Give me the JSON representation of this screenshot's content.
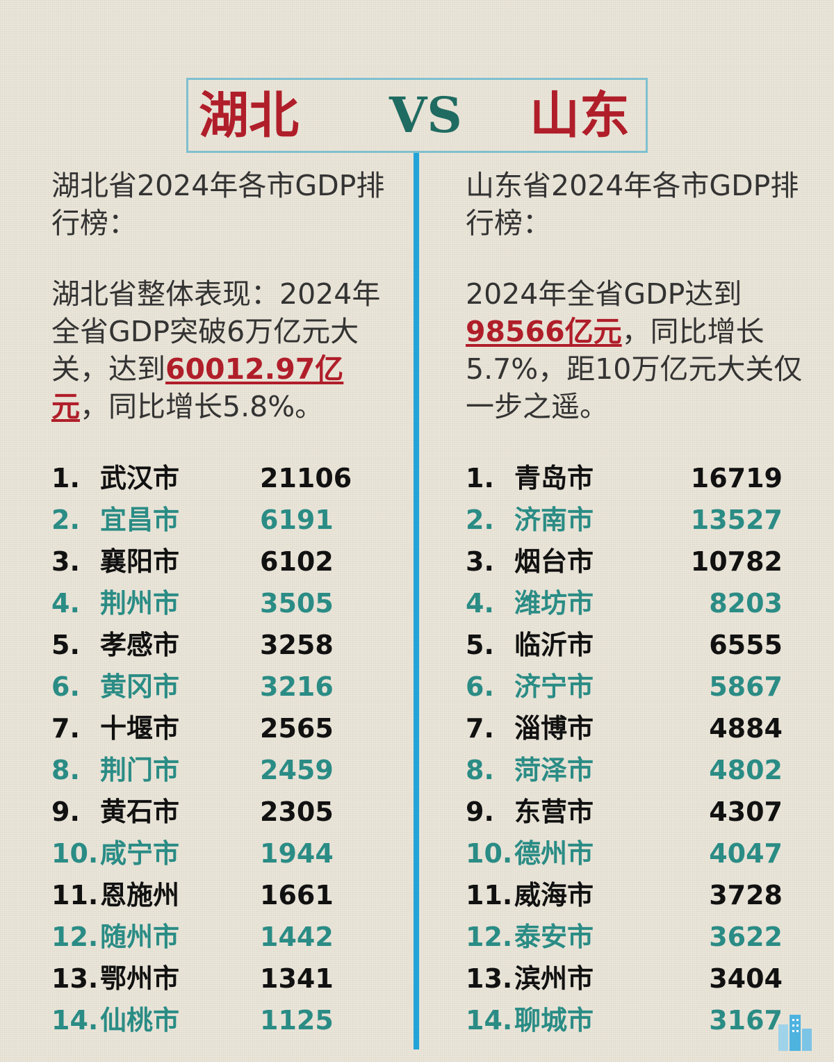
{
  "title": {
    "left": "湖北",
    "vs": "VS",
    "right": "山东"
  },
  "hubei": {
    "heading": "湖北省2024年各市GDP排行榜：",
    "summary_prefix": "湖北省整体表现：2024年全省GDP突破6万亿元大关，达到",
    "summary_highlight": "60012.97亿元",
    "summary_suffix": "，同比增长5.8%。",
    "ranking": [
      {
        "rank": "1.",
        "city": "武汉市",
        "gdp": "21106"
      },
      {
        "rank": "2.",
        "city": "宜昌市",
        "gdp": "6191"
      },
      {
        "rank": "3.",
        "city": "襄阳市",
        "gdp": "6102"
      },
      {
        "rank": "4.",
        "city": "荆州市",
        "gdp": "3505"
      },
      {
        "rank": "5.",
        "city": "孝感市",
        "gdp": "3258"
      },
      {
        "rank": "6.",
        "city": "黄冈市",
        "gdp": "3216"
      },
      {
        "rank": "7.",
        "city": "十堰市",
        "gdp": "2565"
      },
      {
        "rank": "8.",
        "city": "荆门市",
        "gdp": "2459"
      },
      {
        "rank": "9.",
        "city": "黄石市",
        "gdp": "2305"
      },
      {
        "rank": "10.",
        "city": "咸宁市",
        "gdp": "1944"
      },
      {
        "rank": "11.",
        "city": "恩施州",
        "gdp": "1661"
      },
      {
        "rank": "12.",
        "city": "随州市",
        "gdp": "1442"
      },
      {
        "rank": "13.",
        "city": "鄂州市",
        "gdp": "1341"
      },
      {
        "rank": "14.",
        "city": "仙桃市",
        "gdp": "1125"
      }
    ]
  },
  "shandong": {
    "heading": "山东省2024年各市GDP排行榜：",
    "summary_prefix": "2024年全省GDP达到",
    "summary_highlight": "98566亿元",
    "summary_suffix": "，同比增长5.7%，距10万亿元大关仅一步之遥。",
    "ranking": [
      {
        "rank": "1.",
        "city": "青岛市",
        "gdp": "16719"
      },
      {
        "rank": "2.",
        "city": "济南市",
        "gdp": "13527"
      },
      {
        "rank": "3.",
        "city": "烟台市",
        "gdp": "10782"
      },
      {
        "rank": "4.",
        "city": "潍坊市",
        "gdp": "8203"
      },
      {
        "rank": "5.",
        "city": "临沂市",
        "gdp": "6555"
      },
      {
        "rank": "6.",
        "city": "济宁市",
        "gdp": "5867"
      },
      {
        "rank": "7.",
        "city": "淄博市",
        "gdp": "4884"
      },
      {
        "rank": "8.",
        "city": "菏泽市",
        "gdp": "4802"
      },
      {
        "rank": "9.",
        "city": "东营市",
        "gdp": "4307"
      },
      {
        "rank": "10.",
        "city": "德州市",
        "gdp": "4047"
      },
      {
        "rank": "11.",
        "city": "威海市",
        "gdp": "3728"
      },
      {
        "rank": "12.",
        "city": "泰安市",
        "gdp": "3622"
      },
      {
        "rank": "13.",
        "city": "滨州市",
        "gdp": "3404"
      },
      {
        "rank": "14.",
        "city": "聊城市",
        "gdp": "3167"
      }
    ]
  },
  "colors": {
    "accent_red": "#b01e2a",
    "accent_teal": "#2a8c85",
    "divider_blue": "#23a4d8",
    "vs_green": "#1f6b61"
  },
  "icons": {
    "corner_logo": "building-logo-icon"
  }
}
